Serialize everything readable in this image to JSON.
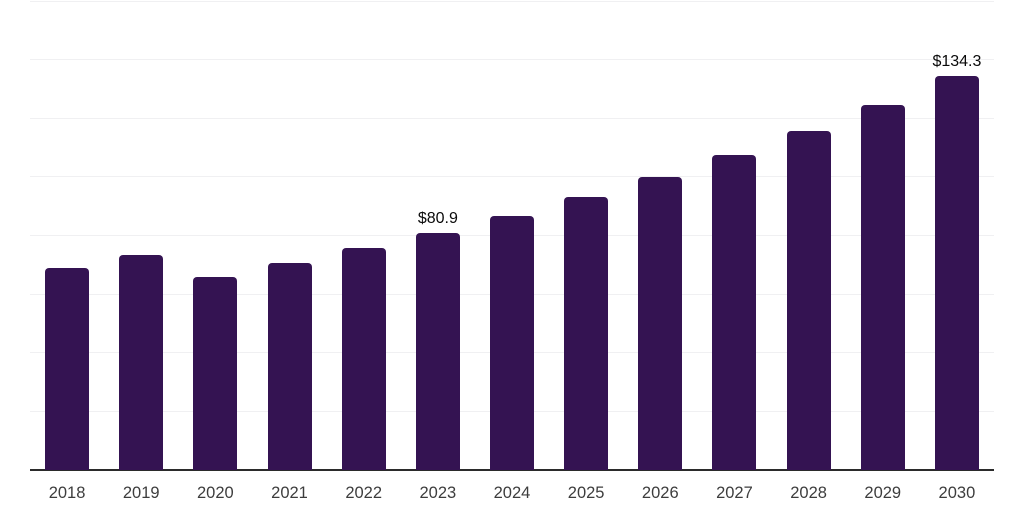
{
  "chart_data": {
    "type": "bar",
    "title": "",
    "xlabel": "",
    "ylabel": "",
    "categories": [
      "2018",
      "2019",
      "2020",
      "2021",
      "2022",
      "2023",
      "2024",
      "2025",
      "2026",
      "2027",
      "2028",
      "2029",
      "2030"
    ],
    "values": [
      68.8,
      73.2,
      65.7,
      70.5,
      75.6,
      80.9,
      86.5,
      93.0,
      99.8,
      107.6,
      115.8,
      124.4,
      134.3
    ],
    "point_labels": [
      "",
      "",
      "",
      "",
      "",
      "$80.9",
      "",
      "",
      "",
      "",
      "",
      "",
      "$134.3"
    ],
    "ylim": [
      0,
      160
    ],
    "gridline_step": 20,
    "grid": true,
    "legend": false,
    "colors": {
      "bar": "#341352",
      "gridline": "#f0f0f2",
      "axis_line": "#2b2b2b",
      "x_tick_label": "#3d3d3d",
      "value_label": "#0a0a0a",
      "background": "#ffffff"
    }
  }
}
